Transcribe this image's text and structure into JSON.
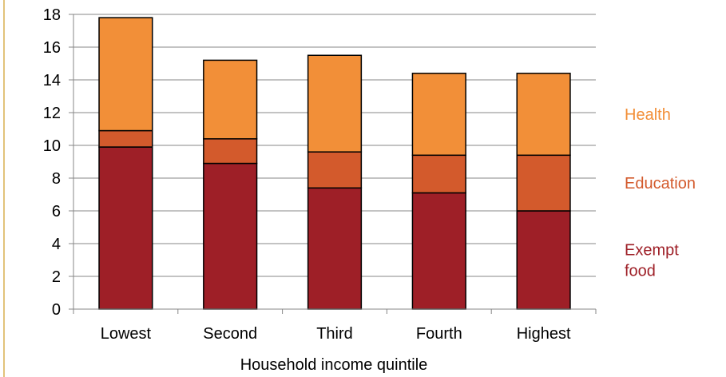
{
  "chart_data": {
    "type": "bar",
    "stacked": true,
    "title": "",
    "xlabel": "Household income quintile",
    "ylabel": "",
    "categories": [
      "Lowest",
      "Second",
      "Third",
      "Fourth",
      "Highest"
    ],
    "series": [
      {
        "name": "Exempt food",
        "color": "#9e1f27",
        "values": [
          9.9,
          8.9,
          7.4,
          7.1,
          6.0
        ]
      },
      {
        "name": "Education",
        "color": "#d35a2c",
        "values": [
          1.0,
          1.5,
          2.2,
          2.3,
          3.4
        ]
      },
      {
        "name": "Health",
        "color": "#f28f38",
        "values": [
          6.9,
          4.8,
          5.9,
          5.0,
          5.0
        ]
      }
    ],
    "ylim": [
      0,
      18
    ],
    "yticks": [
      0,
      2,
      4,
      6,
      8,
      10,
      12,
      14,
      16,
      18
    ],
    "grid": true,
    "legend_position": "right"
  }
}
